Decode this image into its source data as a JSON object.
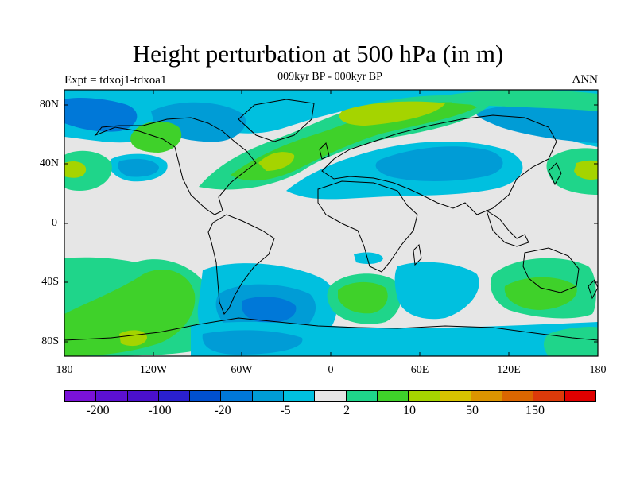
{
  "title": "Height perturbation at 500 hPa (in m)",
  "experiment": "Expt = tdxoj1-tdxoa1",
  "period": "009kyr BP - 000kyr BP",
  "season": "ANN",
  "y_ticks": [
    "80N",
    "40N",
    "0",
    "40S",
    "80S"
  ],
  "x_ticks": [
    "180",
    "120W",
    "60W",
    "0",
    "60E",
    "120E",
    "180"
  ],
  "colorbar": {
    "colors": [
      "#7a12d8",
      "#5c10d2",
      "#4a10cc",
      "#2a20cf",
      "#0050d0",
      "#0078d8",
      "#009cd6",
      "#00c0df",
      "#e6e6e6",
      "#1fd58a",
      "#3fd12a",
      "#a5d400",
      "#d7c400",
      "#dc9400",
      "#db6600",
      "#dc3a0a",
      "#e00000"
    ],
    "labels": [
      "-200",
      "-100",
      "-20",
      "-5",
      "2",
      "10",
      "50",
      "150"
    ]
  },
  "map_colors": {
    "background": "#e6e6e6",
    "deep_blue": "#0078d8",
    "mid_blue": "#009cd6",
    "light_blue": "#00c0df",
    "teal": "#1fd58a",
    "green": "#3fd12a",
    "yellow_green": "#a5d400",
    "coast": "#000000"
  }
}
